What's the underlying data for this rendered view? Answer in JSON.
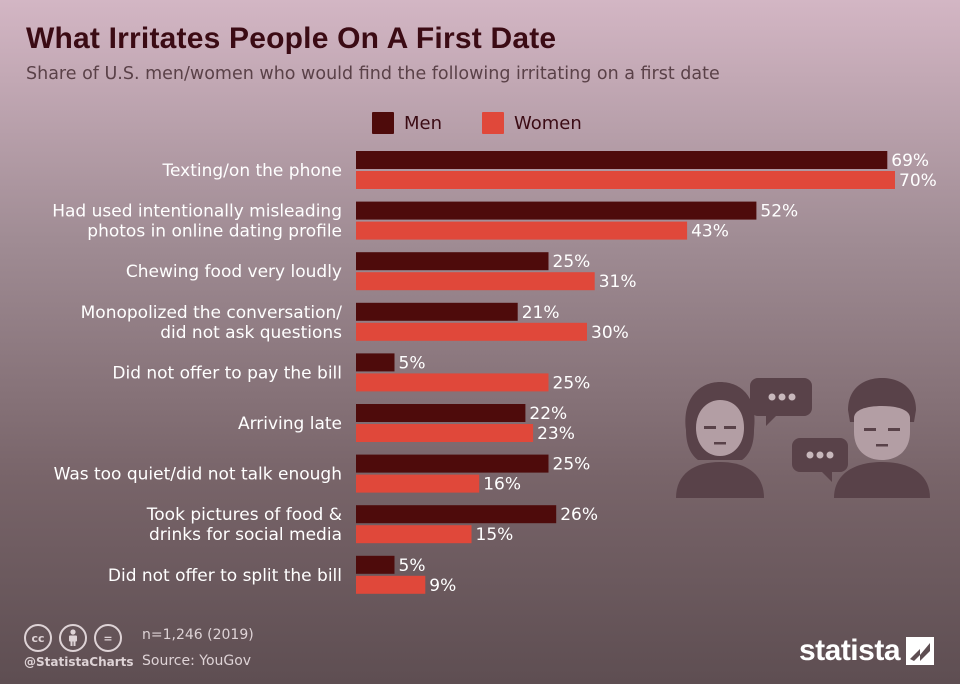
{
  "header": {
    "title": "What Irritates People On A First Date",
    "subtitle": "Share of U.S. men/women who would find the following irritating on a first date"
  },
  "legend": {
    "men_label": "Men",
    "women_label": "Women"
  },
  "colors": {
    "men": "#4e0b0b",
    "women": "#e0483a",
    "title": "#3b0b14"
  },
  "chart_data": {
    "type": "bar",
    "orientation": "horizontal",
    "categories": [
      [
        "Texting/on the phone"
      ],
      [
        "Had used intentionally misleading",
        "photos in online dating profile"
      ],
      [
        "Chewing food very loudly"
      ],
      [
        "Monopolized the conversation/",
        "did not ask questions"
      ],
      [
        "Did not offer to pay the bill"
      ],
      [
        "Arriving late"
      ],
      [
        "Was too quiet/did not talk enough"
      ],
      [
        "Took pictures of food &",
        "drinks for social media"
      ],
      [
        "Did not offer to split the bill"
      ]
    ],
    "series": [
      {
        "name": "Men",
        "values": [
          69,
          52,
          25,
          21,
          5,
          22,
          25,
          26,
          5
        ]
      },
      {
        "name": "Women",
        "values": [
          70,
          43,
          31,
          30,
          25,
          23,
          16,
          15,
          9
        ]
      }
    ],
    "value_suffix": "%",
    "xlim": [
      0,
      100
    ],
    "grid": false,
    "legend_position": "top"
  },
  "icons": {
    "illustration": "couple-chat-icon",
    "cc": "cc-icon",
    "attribution": "by-icon",
    "no_derivatives": "nd-icon",
    "brand": "statista-logo-icon"
  },
  "footer": {
    "cc_text": "cc",
    "nd_text": "=",
    "handle": "@StatistaCharts",
    "note": "n=1,246 (2019)",
    "source": "Source: YouGov",
    "brand": "statista"
  }
}
